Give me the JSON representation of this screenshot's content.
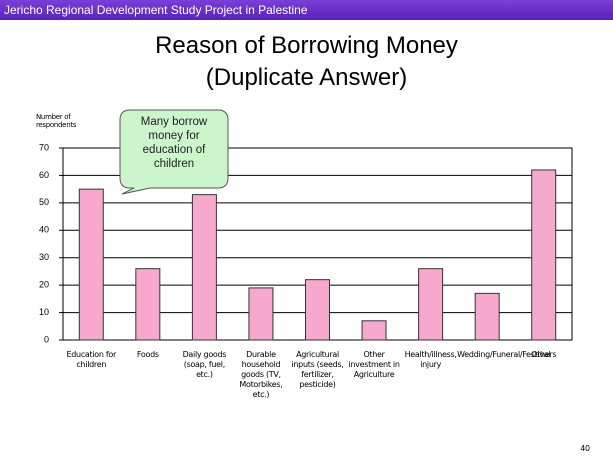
{
  "header": "Jericho Regional Development Study Project in Palestine",
  "page_number": "40",
  "chart_data": {
    "type": "bar",
    "title": "Reason of Borrowing Money",
    "subtitle": "(Duplicate Answer)",
    "y_label": "Number of respondents",
    "annotation": "Many borrow money for education of children",
    "categories": [
      "Education for children",
      "Foods",
      "Daily goods (soap, fuel, etc.)",
      "Durable household goods (TV, Motorbikes, etc.)",
      "Agricultural inputs (seeds, fertilizer, pesticide)",
      "Other investment in Agriculture",
      "Health/illness, injury",
      "Wedding/Funeral/Festival",
      "Others"
    ],
    "values": [
      55,
      26,
      53,
      19,
      22,
      7,
      26,
      17,
      62
    ],
    "color": "#f7a8cf",
    "ylim": [
      0,
      70
    ],
    "yticks": [
      0,
      10,
      20,
      30,
      40,
      50,
      60,
      70
    ],
    "grid": true
  }
}
